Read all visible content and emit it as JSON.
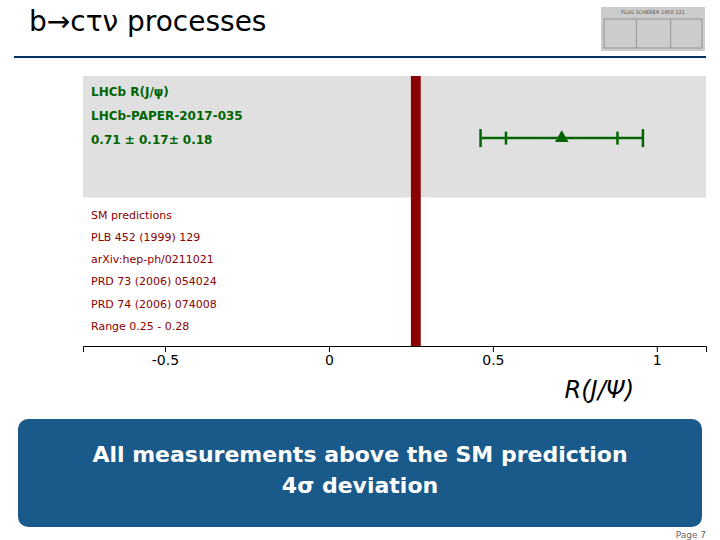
{
  "chart_data": {
    "type": "errorbar",
    "title": "b→cτν processes",
    "title_rule_color": "#003366",
    "x_label": "R(J/Ψ)",
    "xlim": [
      -0.75,
      1.15
    ],
    "xticks": [
      -0.5,
      0,
      0.5,
      1
    ],
    "tick_labels": "x",
    "highlight_color": "#e0e0e0",
    "bands": [
      {
        "range": [
          0.25,
          0.28
        ],
        "color": "#8b0000"
      }
    ],
    "measurement": {
      "value": 0.71,
      "stat_error": 0.17,
      "total_error": 0.24758837,
      "color": "#006400",
      "marker": "triangle"
    },
    "lhcb_labels": {
      "color": "#006400",
      "lines": [
        "LHCb R(J/ψ)",
        "LHCb-PAPER-2017-035",
        "0.71 ± 0.17± 0.18"
      ]
    },
    "sm_labels": {
      "color": "#8b0000",
      "lines": [
        "SM predictions",
        "PLB 452 (1999) 129",
        "arXiv:hep-ph/0211021",
        "PRD 73 (2006) 054024",
        "PRD 74 (2006) 074008",
        "Range 0.25 - 0.28"
      ]
    },
    "footer": {
      "lines": [
        "All measurements above the SM prediction",
        "4σ deviation"
      ],
      "color": "#ffffff",
      "background": "#1a5a8a"
    },
    "page_text": "Page 7",
    "logo_text": "FLUG SCHERER 1958 121"
  }
}
